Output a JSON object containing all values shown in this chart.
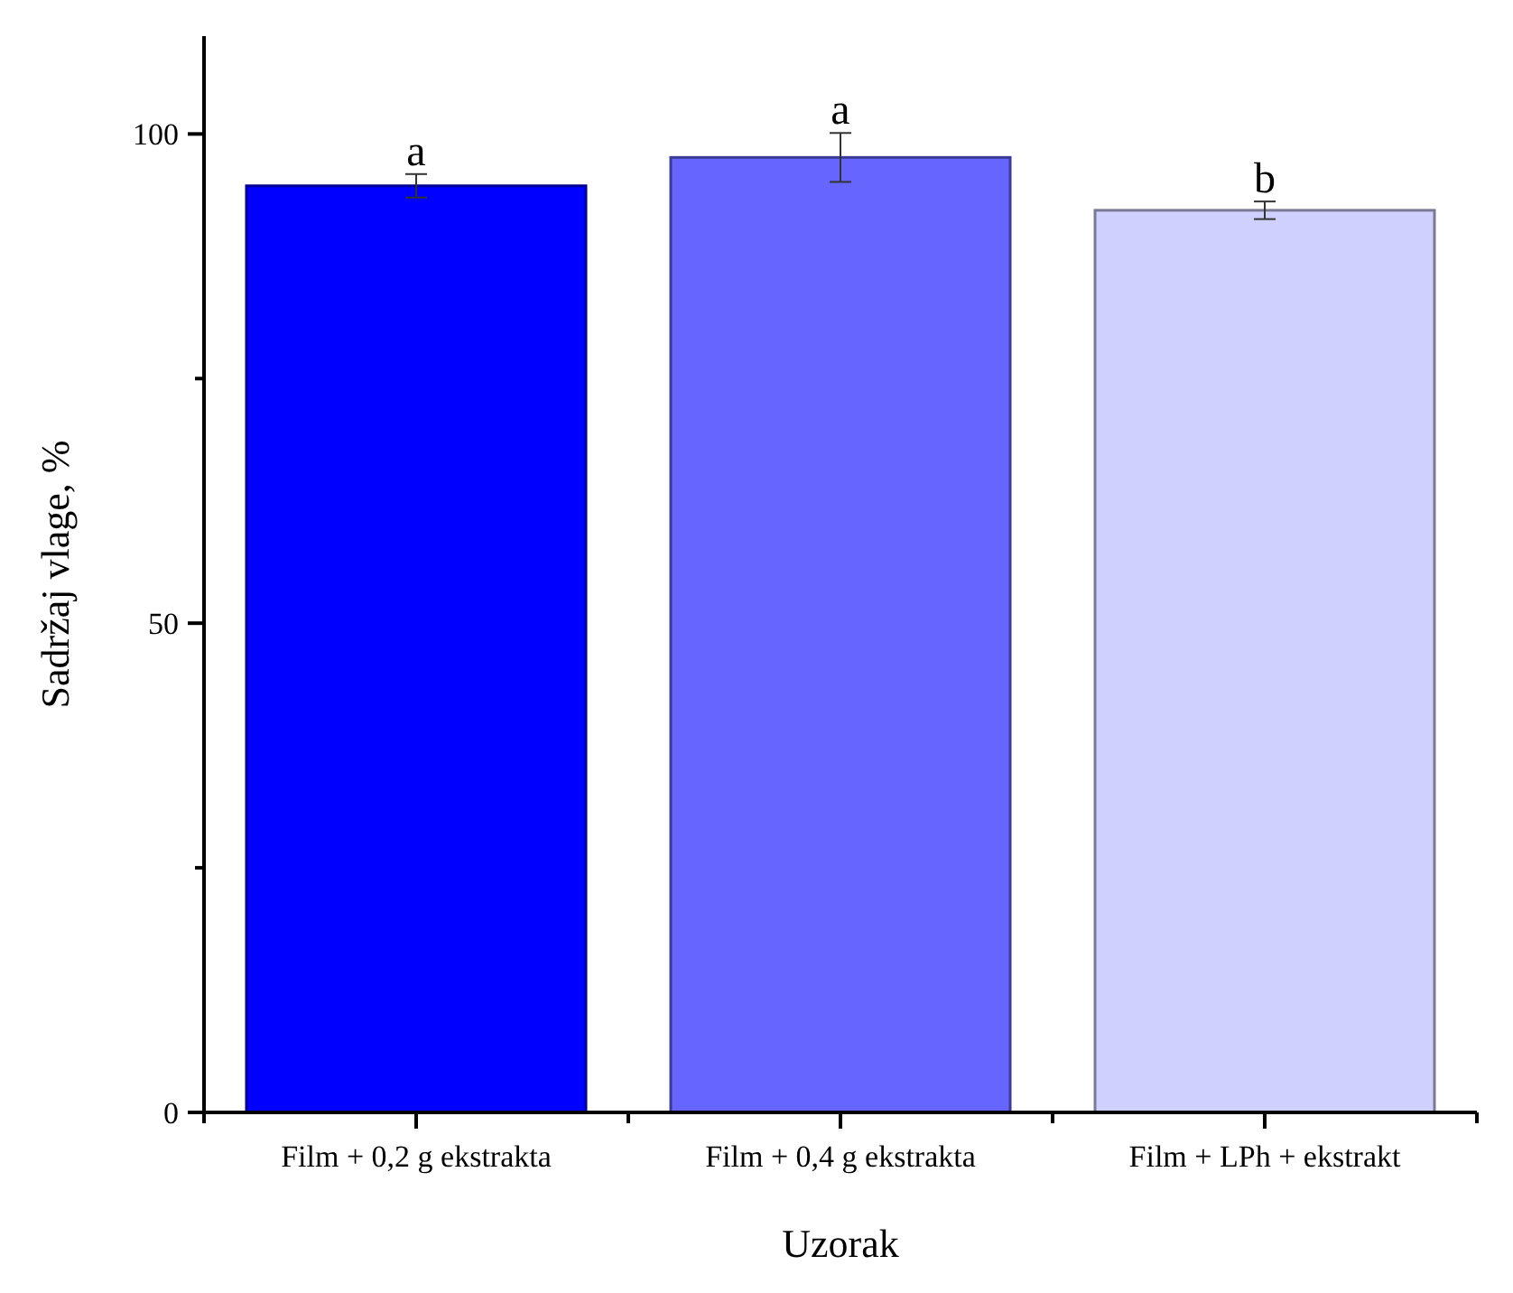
{
  "chart_data": {
    "type": "bar",
    "xlabel": "Uzorak",
    "ylabel": "Sadržaj vlage, %",
    "categories": [
      "Film + 0,2 g ekstrakta",
      "Film + 0,4 g ekstrakta",
      "Film + LPh + ekstrakt"
    ],
    "values": [
      94.7,
      97.6,
      92.2
    ],
    "errors": [
      1.2,
      2.5,
      0.9
    ],
    "colors": [
      "#0000ff",
      "#6666ff",
      "#d0d0ff"
    ],
    "ylim": [
      0,
      110
    ],
    "yticks": [
      0,
      {
        "value": 25,
        "label": null
      },
      50,
      {
        "value": 75,
        "label": null
      },
      100
    ],
    "annotations": [
      "a",
      "a",
      "b"
    ],
    "grid": false
  }
}
